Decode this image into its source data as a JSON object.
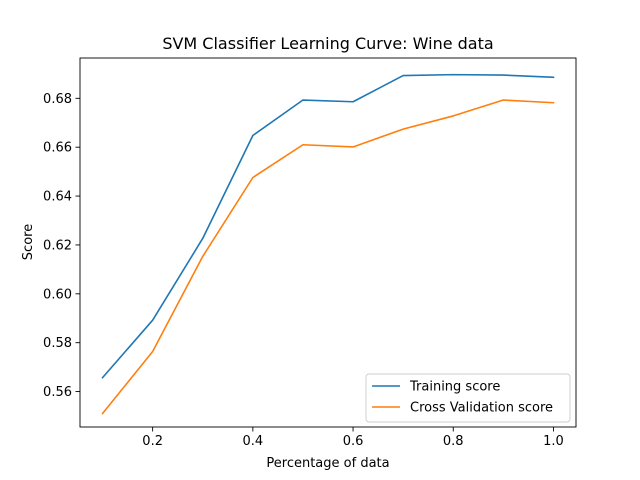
{
  "chart_data": {
    "type": "line",
    "title": "SVM Classifier Learning Curve: Wine data",
    "xlabel": "Percentage of data",
    "ylabel": "Score",
    "xlim": [
      0.055,
      1.045
    ],
    "ylim": [
      0.5455,
      0.6965
    ],
    "xticks": [
      0.2,
      0.4,
      0.6,
      0.8,
      1.0
    ],
    "xtick_labels": [
      "0.2",
      "0.4",
      "0.6",
      "0.8",
      "1.0"
    ],
    "yticks": [
      0.56,
      0.58,
      0.6,
      0.62,
      0.64,
      0.66,
      0.68
    ],
    "ytick_labels": [
      "0.56",
      "0.58",
      "0.60",
      "0.62",
      "0.64",
      "0.66",
      "0.68"
    ],
    "grid": false,
    "legend_position": "lower-right",
    "x": [
      0.1,
      0.2,
      0.3,
      0.4,
      0.5,
      0.6,
      0.7,
      0.8,
      0.9,
      1.0
    ],
    "series": [
      {
        "name": "Training score",
        "color": "#1f77b4",
        "values": [
          0.5657,
          0.5892,
          0.6227,
          0.6648,
          0.6793,
          0.6786,
          0.6893,
          0.6897,
          0.6895,
          0.6886
        ]
      },
      {
        "name": "Cross Validation score",
        "color": "#ff7f0e",
        "values": [
          0.551,
          0.5764,
          0.6153,
          0.6476,
          0.661,
          0.6601,
          0.6674,
          0.6728,
          0.6793,
          0.6782
        ]
      }
    ]
  }
}
